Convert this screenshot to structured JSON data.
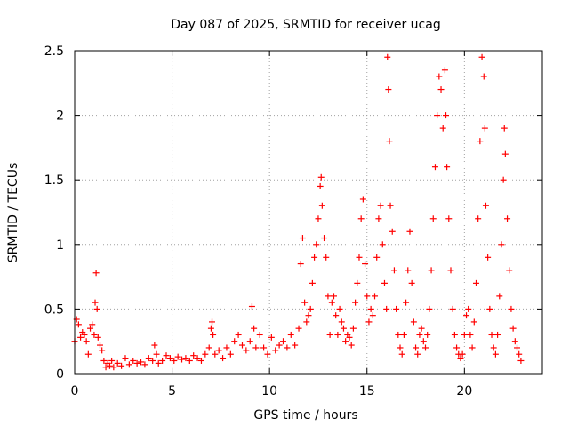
{
  "chart_data": {
    "type": "scatter",
    "title": "Day 087 of 2025, SRMTID for receiver ucag",
    "xlabel": "GPS time / hours",
    "ylabel": "SRMTID / TECUs",
    "xlim": [
      0,
      24
    ],
    "ylim": [
      0,
      2.5
    ],
    "xticks": [
      0,
      5,
      10,
      15,
      20
    ],
    "xtick_labels": [
      "0",
      "5",
      "10",
      "15",
      "20"
    ],
    "yticks": [
      0,
      0.5,
      1,
      1.5,
      2,
      2.5
    ],
    "ytick_labels": [
      "0",
      "0.5",
      "1",
      "1.5",
      "2",
      "2.5"
    ],
    "grid": true,
    "marker": "+",
    "color": "#ff0000",
    "series": [
      {
        "name": "SRMTID",
        "x": [
          0.0,
          0.1,
          0.2,
          0.3,
          0.4,
          0.5,
          0.6,
          0.7,
          0.8,
          0.9,
          1.0,
          1.05,
          1.1,
          1.15,
          1.2,
          1.3,
          1.4,
          1.5,
          1.6,
          1.7,
          1.8,
          1.9,
          2.0,
          2.2,
          2.4,
          2.6,
          2.8,
          3.0,
          3.2,
          3.4,
          3.6,
          3.8,
          4.0,
          4.1,
          4.2,
          4.3,
          4.5,
          4.7,
          4.9,
          5.1,
          5.3,
          5.5,
          5.7,
          5.9,
          6.1,
          6.3,
          6.5,
          6.7,
          6.9,
          7.0,
          7.05,
          7.1,
          7.2,
          7.4,
          7.6,
          7.8,
          8.0,
          8.2,
          8.4,
          8.6,
          8.8,
          9.0,
          9.1,
          9.2,
          9.3,
          9.5,
          9.7,
          9.9,
          10.1,
          10.3,
          10.5,
          10.7,
          10.9,
          11.1,
          11.3,
          11.5,
          11.6,
          11.7,
          11.8,
          11.9,
          12.0,
          12.1,
          12.2,
          12.3,
          12.4,
          12.5,
          12.6,
          12.65,
          12.7,
          12.8,
          12.9,
          13.0,
          13.1,
          13.2,
          13.3,
          13.4,
          13.5,
          13.6,
          13.7,
          13.8,
          13.9,
          14.0,
          14.1,
          14.2,
          14.3,
          14.4,
          14.5,
          14.6,
          14.7,
          14.8,
          14.9,
          15.0,
          15.1,
          15.2,
          15.3,
          15.4,
          15.5,
          15.6,
          15.7,
          15.8,
          15.9,
          16.0,
          16.05,
          16.1,
          16.15,
          16.2,
          16.3,
          16.4,
          16.5,
          16.6,
          16.7,
          16.8,
          16.9,
          17.0,
          17.1,
          17.2,
          17.3,
          17.4,
          17.5,
          17.6,
          17.7,
          17.8,
          17.9,
          18.0,
          18.1,
          18.2,
          18.3,
          18.4,
          18.5,
          18.6,
          18.7,
          18.8,
          18.9,
          19.0,
          19.05,
          19.1,
          19.2,
          19.3,
          19.4,
          19.5,
          19.6,
          19.7,
          19.8,
          19.9,
          20.0,
          20.1,
          20.2,
          20.3,
          20.4,
          20.5,
          20.6,
          20.7,
          20.8,
          20.9,
          21.0,
          21.05,
          21.1,
          21.2,
          21.3,
          21.4,
          21.5,
          21.6,
          21.7,
          21.8,
          21.9,
          22.0,
          22.05,
          22.1,
          22.2,
          22.3,
          22.4,
          22.5,
          22.6,
          22.7,
          22.8,
          22.9
        ],
        "y": [
          0.25,
          0.42,
          0.38,
          0.28,
          0.32,
          0.3,
          0.25,
          0.15,
          0.35,
          0.38,
          0.3,
          0.55,
          0.78,
          0.5,
          0.28,
          0.22,
          0.18,
          0.1,
          0.05,
          0.08,
          0.06,
          0.1,
          0.05,
          0.08,
          0.06,
          0.12,
          0.07,
          0.1,
          0.08,
          0.09,
          0.07,
          0.12,
          0.1,
          0.22,
          0.15,
          0.08,
          0.1,
          0.14,
          0.12,
          0.1,
          0.13,
          0.11,
          0.12,
          0.1,
          0.14,
          0.12,
          0.1,
          0.15,
          0.2,
          0.35,
          0.4,
          0.3,
          0.15,
          0.18,
          0.12,
          0.2,
          0.15,
          0.25,
          0.3,
          0.22,
          0.18,
          0.25,
          0.52,
          0.35,
          0.2,
          0.3,
          0.2,
          0.15,
          0.28,
          0.18,
          0.22,
          0.25,
          0.2,
          0.3,
          0.22,
          0.35,
          0.85,
          1.05,
          0.55,
          0.4,
          0.45,
          0.5,
          0.7,
          0.9,
          1.0,
          1.2,
          1.45,
          1.52,
          1.3,
          1.05,
          0.9,
          0.6,
          0.3,
          0.55,
          0.6,
          0.45,
          0.3,
          0.5,
          0.4,
          0.35,
          0.25,
          0.3,
          0.28,
          0.22,
          0.35,
          0.55,
          0.7,
          0.9,
          1.2,
          1.35,
          0.85,
          0.6,
          0.4,
          0.5,
          0.45,
          0.6,
          0.9,
          1.2,
          1.3,
          1.0,
          0.7,
          0.5,
          2.45,
          2.2,
          1.8,
          1.3,
          1.1,
          0.8,
          0.5,
          0.3,
          0.2,
          0.15,
          0.3,
          0.55,
          0.8,
          1.1,
          0.7,
          0.4,
          0.2,
          0.15,
          0.3,
          0.35,
          0.25,
          0.2,
          0.3,
          0.5,
          0.8,
          1.2,
          1.6,
          2.0,
          2.3,
          2.2,
          1.9,
          2.35,
          2.0,
          1.6,
          1.2,
          0.8,
          0.5,
          0.3,
          0.2,
          0.15,
          0.12,
          0.15,
          0.3,
          0.45,
          0.5,
          0.3,
          0.2,
          0.4,
          0.7,
          1.2,
          1.8,
          2.45,
          2.3,
          1.9,
          1.3,
          0.9,
          0.5,
          0.3,
          0.2,
          0.15,
          0.3,
          0.6,
          1.0,
          1.5,
          1.9,
          1.7,
          1.2,
          0.8,
          0.5,
          0.35,
          0.25,
          0.2,
          0.15,
          0.1
        ]
      }
    ]
  }
}
